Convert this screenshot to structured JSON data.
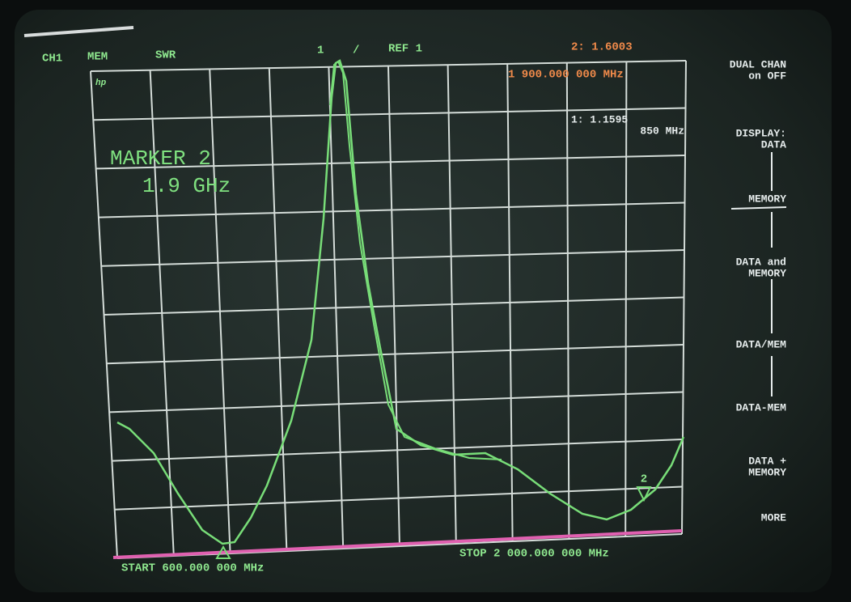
{
  "header": {
    "channel": "CH1",
    "mode": "MEM",
    "format": "SWR",
    "scale_div": "1",
    "separator": "/",
    "ref": "REF 1"
  },
  "marker_readout": {
    "active_value": "2: 1.6003",
    "active_freq": "1 900.000 000 MHz",
    "marker1_value": "1: 1.1595",
    "marker1_freq": "850 MHz"
  },
  "annotation": {
    "line1": "MARKER 2",
    "line2": "1.9 GHz"
  },
  "footer": {
    "start": "START 600.000 000 MHz",
    "stop": "STOP 2 000.000 000 MHz"
  },
  "logo": "hp",
  "marker_label": "2",
  "softkeys": [
    {
      "lines": [
        "DUAL CHAN",
        "on OFF"
      ]
    },
    {
      "lines": [
        "DISPLAY:",
        "DATA"
      ]
    },
    {
      "lines": [
        "MEMORY"
      ]
    },
    {
      "lines": [
        "DATA and",
        "MEMORY"
      ]
    },
    {
      "lines": [
        "DATA/MEM"
      ]
    },
    {
      "lines": [
        "DATA-MEM"
      ]
    },
    {
      "lines": [
        "DATA +",
        "MEMORY"
      ]
    },
    {
      "lines": [
        "MORE"
      ]
    }
  ]
}
